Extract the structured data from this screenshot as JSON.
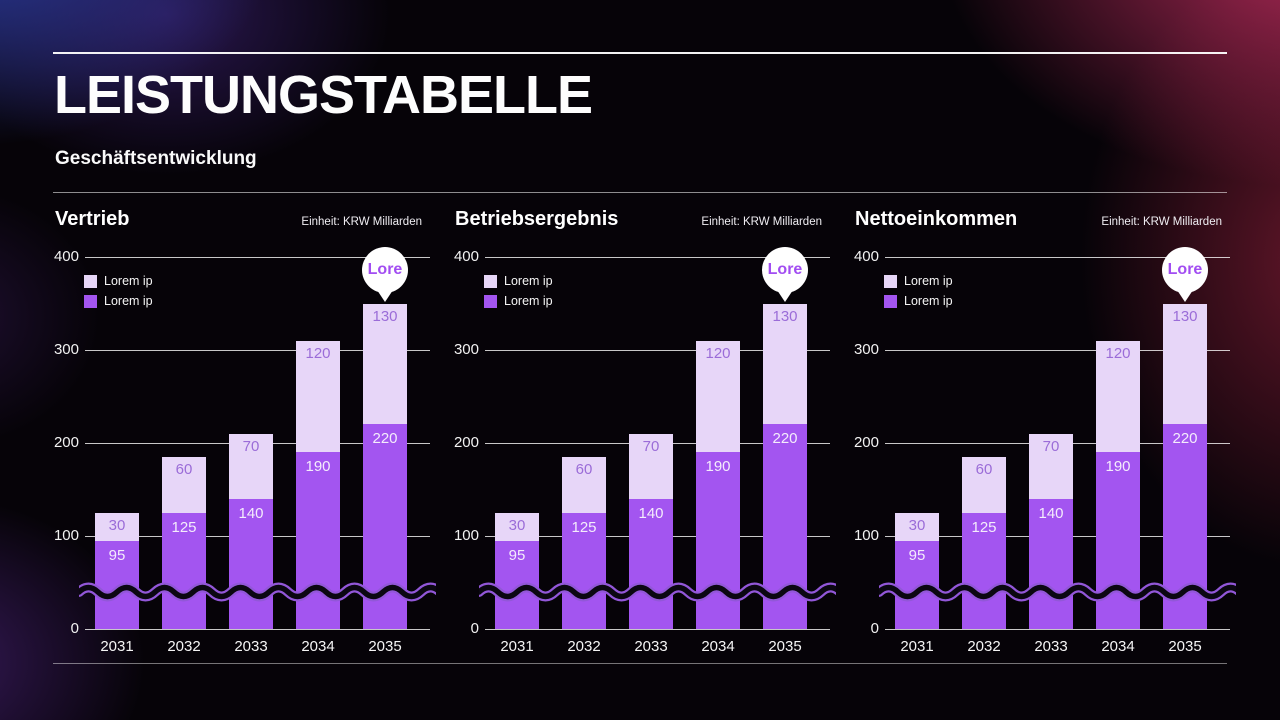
{
  "slide": {
    "title": "LEISTUNGSTABELLE",
    "subtitle": "Geschäftsentwicklung"
  },
  "colors": {
    "series_light": "#e7d6f8",
    "series_bright": "#a355f0",
    "label_on_light": "#9b6cd8",
    "label_on_bright": "#f4ecfc",
    "callout_text": "#a24df2",
    "wave_black": "#0b0712",
    "wave_purple": "#9257d8",
    "gridline": "rgba(255,255,255,0.78)"
  },
  "chart_data": [
    {
      "type": "bar",
      "stacked": true,
      "title": "Vertrieb",
      "unit": "Einheit: KRW Milliarden",
      "categories": [
        "2031",
        "2032",
        "2033",
        "2034",
        "2035"
      ],
      "series": [
        {
          "name": "Lorem ip",
          "role": "bottom",
          "color": "#a355f0",
          "values": [
            95,
            125,
            140,
            190,
            220
          ]
        },
        {
          "name": "Lorem ip",
          "role": "top",
          "color": "#e7d6f8",
          "values": [
            30,
            60,
            70,
            120,
            130
          ]
        }
      ],
      "legend": [
        "Lorem ip",
        "Lorem ip"
      ],
      "legend_position": "top-left",
      "ylim": [
        0,
        400
      ],
      "yticks": [
        400,
        300,
        200,
        100,
        0
      ],
      "grid": true,
      "callout": "Lore",
      "axis_break_wave": true
    },
    {
      "type": "bar",
      "stacked": true,
      "title": "Betriebsergebnis",
      "unit": "Einheit: KRW Milliarden",
      "categories": [
        "2031",
        "2032",
        "2033",
        "2034",
        "2035"
      ],
      "series": [
        {
          "name": "Lorem ip",
          "role": "bottom",
          "color": "#a355f0",
          "values": [
            95,
            125,
            140,
            190,
            220
          ]
        },
        {
          "name": "Lorem ip",
          "role": "top",
          "color": "#e7d6f8",
          "values": [
            30,
            60,
            70,
            120,
            130
          ]
        }
      ],
      "legend": [
        "Lorem ip",
        "Lorem ip"
      ],
      "legend_position": "top-left",
      "ylim": [
        0,
        400
      ],
      "yticks": [
        400,
        300,
        200,
        100,
        0
      ],
      "grid": true,
      "callout": "Lore",
      "axis_break_wave": true
    },
    {
      "type": "bar",
      "stacked": true,
      "title": "Nettoeinkommen",
      "unit": "Einheit: KRW Milliarden",
      "categories": [
        "2031",
        "2032",
        "2033",
        "2034",
        "2035"
      ],
      "series": [
        {
          "name": "Lorem ip",
          "role": "bottom",
          "color": "#a355f0",
          "values": [
            95,
            125,
            140,
            190,
            220
          ]
        },
        {
          "name": "Lorem ip",
          "role": "top",
          "color": "#e7d6f8",
          "values": [
            30,
            60,
            70,
            120,
            130
          ]
        }
      ],
      "legend": [
        "Lorem ip",
        "Lorem ip"
      ],
      "legend_position": "top-left",
      "ylim": [
        0,
        400
      ],
      "yticks": [
        400,
        300,
        200,
        100,
        0
      ],
      "grid": true,
      "callout": "Lore",
      "axis_break_wave": true
    }
  ]
}
